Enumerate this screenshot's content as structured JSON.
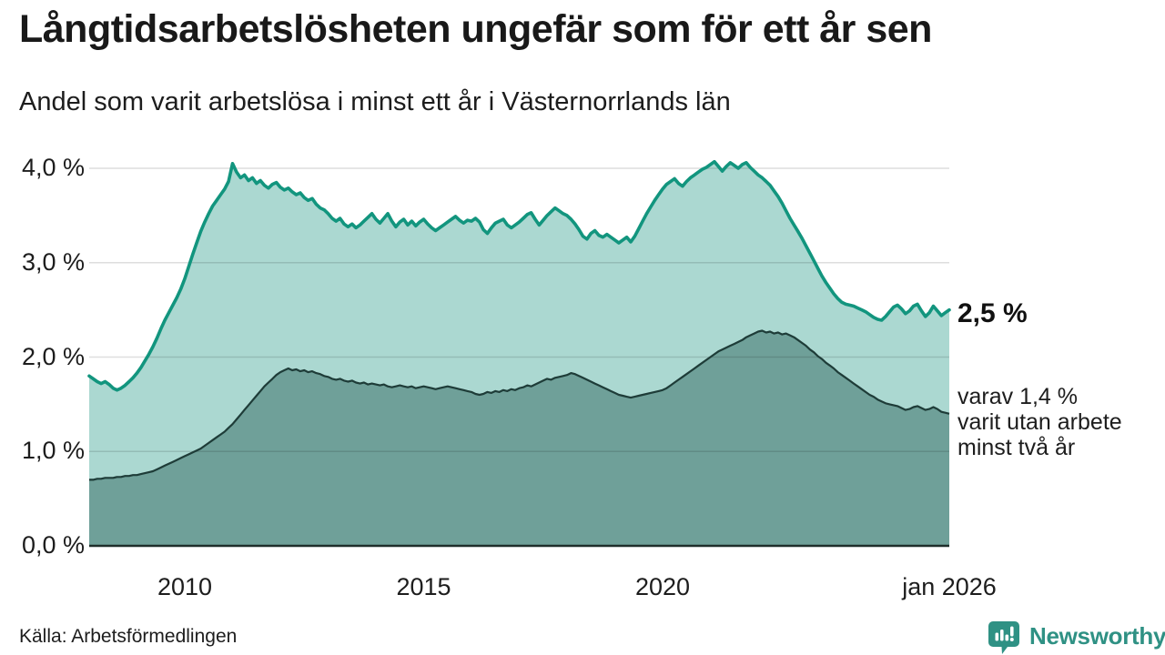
{
  "header": {
    "title": "Långtidsarbetslösheten ungefär som för ett år sen",
    "subtitle": "Andel som varit arbetslösa i minst ett år i Västernorrlands län"
  },
  "annotations": {
    "latest_value_label": "2,5 %",
    "secondary_note": "varav 1,4 %\nvarit utan arbete\nminst två år"
  },
  "footer": {
    "source": "Källa: Arbetsförmedlingen",
    "brand": "Newsworthy"
  },
  "colors": {
    "series1_line": "#12957E",
    "series1_fill": "#ABD8D1",
    "series2_line": "#1E3C38",
    "series2_fill": "#6FA099",
    "grid": "rgba(0,0,0,0.13)",
    "axis_line": "#1F2E2B",
    "brand_teal": "#2F9184"
  },
  "chart_data": {
    "type": "area",
    "title": "Långtidsarbetslösheten ungefär som för ett år sen",
    "subtitle": "Andel som varit arbetslösa i minst ett år i Västernorrlands län",
    "x_unit": "month",
    "x_range": [
      "jan 2008",
      "jan 2026"
    ],
    "x_ticks": [
      {
        "label": "2010",
        "year": 2010
      },
      {
        "label": "2015",
        "year": 2015
      },
      {
        "label": "2020",
        "year": 2020
      },
      {
        "label": "jan 2026",
        "year": 2026
      }
    ],
    "y_ticks": [
      {
        "label": "0,0 %",
        "value": 0
      },
      {
        "label": "1,0 %",
        "value": 1
      },
      {
        "label": "2,0 %",
        "value": 2
      },
      {
        "label": "3,0 %",
        "value": 3
      },
      {
        "label": "4,0 %",
        "value": 4
      }
    ],
    "ylim": [
      0,
      4.35
    ],
    "grid": "horizontal",
    "legend_position": "right-annotations",
    "series": [
      {
        "name": "Andel som varit arbetslösa i minst ett år",
        "end_label": "2,5 %",
        "line_color": "#12957E",
        "fill_color": "#ABD8D1",
        "values": [
          1.8,
          1.77,
          1.74,
          1.72,
          1.74,
          1.71,
          1.67,
          1.65,
          1.67,
          1.7,
          1.74,
          1.78,
          1.83,
          1.89,
          1.96,
          2.03,
          2.11,
          2.2,
          2.3,
          2.39,
          2.47,
          2.55,
          2.63,
          2.72,
          2.83,
          2.96,
          3.09,
          3.21,
          3.33,
          3.43,
          3.52,
          3.6,
          3.66,
          3.72,
          3.78,
          3.86,
          4.05,
          3.96,
          3.9,
          3.93,
          3.87,
          3.9,
          3.84,
          3.87,
          3.82,
          3.79,
          3.83,
          3.85,
          3.8,
          3.77,
          3.79,
          3.75,
          3.72,
          3.74,
          3.69,
          3.66,
          3.68,
          3.62,
          3.58,
          3.56,
          3.52,
          3.47,
          3.44,
          3.47,
          3.41,
          3.38,
          3.41,
          3.37,
          3.4,
          3.44,
          3.48,
          3.52,
          3.46,
          3.42,
          3.47,
          3.52,
          3.44,
          3.38,
          3.43,
          3.46,
          3.4,
          3.44,
          3.39,
          3.43,
          3.46,
          3.41,
          3.37,
          3.34,
          3.37,
          3.4,
          3.43,
          3.46,
          3.49,
          3.45,
          3.42,
          3.45,
          3.44,
          3.47,
          3.43,
          3.35,
          3.31,
          3.37,
          3.42,
          3.44,
          3.46,
          3.4,
          3.37,
          3.4,
          3.43,
          3.47,
          3.51,
          3.53,
          3.46,
          3.4,
          3.45,
          3.5,
          3.54,
          3.58,
          3.55,
          3.52,
          3.5,
          3.46,
          3.41,
          3.35,
          3.28,
          3.25,
          3.31,
          3.34,
          3.29,
          3.27,
          3.3,
          3.27,
          3.24,
          3.21,
          3.24,
          3.27,
          3.22,
          3.28,
          3.36,
          3.44,
          3.52,
          3.59,
          3.66,
          3.72,
          3.78,
          3.83,
          3.86,
          3.89,
          3.84,
          3.81,
          3.86,
          3.9,
          3.93,
          3.96,
          3.99,
          4.01,
          4.04,
          4.07,
          4.02,
          3.97,
          4.02,
          4.06,
          4.03,
          4.0,
          4.04,
          4.06,
          4.01,
          3.97,
          3.93,
          3.9,
          3.86,
          3.82,
          3.76,
          3.7,
          3.63,
          3.55,
          3.47,
          3.4,
          3.33,
          3.26,
          3.18,
          3.1,
          3.02,
          2.94,
          2.86,
          2.79,
          2.73,
          2.67,
          2.62,
          2.58,
          2.56,
          2.55,
          2.54,
          2.52,
          2.5,
          2.48,
          2.45,
          2.42,
          2.4,
          2.39,
          2.43,
          2.48,
          2.53,
          2.55,
          2.51,
          2.46,
          2.49,
          2.54,
          2.56,
          2.49,
          2.43,
          2.47,
          2.54,
          2.49,
          2.44,
          2.47,
          2.5
        ]
      },
      {
        "name": "varav varit utan arbete minst två år",
        "end_label": "1,4 %",
        "line_color": "#1E3C38",
        "fill_color": "#6FA099",
        "values": [
          0.7,
          0.7,
          0.71,
          0.71,
          0.72,
          0.72,
          0.72,
          0.73,
          0.73,
          0.74,
          0.74,
          0.75,
          0.75,
          0.76,
          0.77,
          0.78,
          0.79,
          0.81,
          0.83,
          0.85,
          0.87,
          0.89,
          0.91,
          0.93,
          0.95,
          0.97,
          0.99,
          1.01,
          1.03,
          1.06,
          1.09,
          1.12,
          1.15,
          1.18,
          1.21,
          1.25,
          1.29,
          1.34,
          1.39,
          1.44,
          1.49,
          1.54,
          1.59,
          1.64,
          1.69,
          1.73,
          1.77,
          1.81,
          1.84,
          1.86,
          1.88,
          1.86,
          1.87,
          1.85,
          1.86,
          1.84,
          1.85,
          1.83,
          1.82,
          1.8,
          1.79,
          1.77,
          1.76,
          1.77,
          1.75,
          1.74,
          1.75,
          1.73,
          1.72,
          1.73,
          1.71,
          1.72,
          1.71,
          1.7,
          1.71,
          1.69,
          1.68,
          1.69,
          1.7,
          1.69,
          1.68,
          1.69,
          1.67,
          1.68,
          1.69,
          1.68,
          1.67,
          1.66,
          1.67,
          1.68,
          1.69,
          1.68,
          1.67,
          1.66,
          1.65,
          1.64,
          1.63,
          1.61,
          1.6,
          1.61,
          1.63,
          1.62,
          1.64,
          1.63,
          1.65,
          1.64,
          1.66,
          1.65,
          1.67,
          1.68,
          1.7,
          1.69,
          1.71,
          1.73,
          1.75,
          1.77,
          1.76,
          1.78,
          1.79,
          1.8,
          1.81,
          1.83,
          1.82,
          1.8,
          1.78,
          1.76,
          1.74,
          1.72,
          1.7,
          1.68,
          1.66,
          1.64,
          1.62,
          1.6,
          1.59,
          1.58,
          1.57,
          1.58,
          1.59,
          1.6,
          1.61,
          1.62,
          1.63,
          1.64,
          1.65,
          1.67,
          1.7,
          1.73,
          1.76,
          1.79,
          1.82,
          1.85,
          1.88,
          1.91,
          1.94,
          1.97,
          2.0,
          2.03,
          2.06,
          2.08,
          2.1,
          2.12,
          2.14,
          2.16,
          2.18,
          2.21,
          2.23,
          2.25,
          2.27,
          2.28,
          2.26,
          2.27,
          2.25,
          2.26,
          2.24,
          2.25,
          2.23,
          2.21,
          2.18,
          2.15,
          2.12,
          2.08,
          2.05,
          2.01,
          1.98,
          1.94,
          1.91,
          1.88,
          1.84,
          1.81,
          1.78,
          1.75,
          1.72,
          1.69,
          1.66,
          1.63,
          1.6,
          1.58,
          1.55,
          1.53,
          1.51,
          1.5,
          1.49,
          1.48,
          1.46,
          1.44,
          1.45,
          1.47,
          1.48,
          1.46,
          1.44,
          1.45,
          1.47,
          1.45,
          1.42,
          1.41,
          1.4
        ]
      }
    ]
  }
}
